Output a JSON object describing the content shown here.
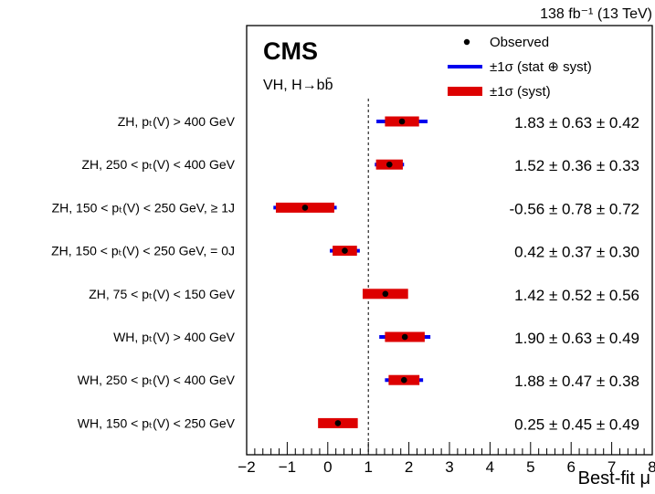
{
  "chart_data": {
    "type": "scatter",
    "title": "",
    "lumi_label": "138 fb⁻¹ (13 TeV)",
    "experiment": "CMS",
    "subtitle": "VH, H→bb̄",
    "xlabel": "Best-fit μ",
    "xlim": [
      -2,
      8
    ],
    "x_ticks": [
      -2,
      -1,
      0,
      1,
      2,
      3,
      4,
      5,
      6,
      7,
      8
    ],
    "reference_line": 1,
    "legend": {
      "position": "top-right",
      "entries": [
        {
          "label": "Observed",
          "marker": "dot",
          "color": "#000000"
        },
        {
          "label": "±1σ (stat ⊕ syst)",
          "marker": "line",
          "color": "#0000ee"
        },
        {
          "label": "±1σ (syst)",
          "marker": "box",
          "color": "#dd0000"
        }
      ]
    },
    "categories": [
      {
        "label": "ZH, pₜ(V) > 400 GeV",
        "value": 1.83,
        "total": 0.63,
        "syst": 0.42,
        "text": "1.83 ± 0.63 ± 0.42"
      },
      {
        "label": "ZH, 250 < pₜ(V) < 400 GeV",
        "value": 1.52,
        "total": 0.36,
        "syst": 0.33,
        "text": "1.52 ± 0.36 ± 0.33"
      },
      {
        "label": "ZH, 150 < pₜ(V) < 250 GeV, ≥ 1J",
        "value": -0.56,
        "total": 0.78,
        "syst": 0.72,
        "text": "-0.56 ± 0.78 ± 0.72"
      },
      {
        "label": "ZH, 150 < pₜ(V) < 250 GeV, = 0J",
        "value": 0.42,
        "total": 0.37,
        "syst": 0.3,
        "text": "0.42 ± 0.37 ± 0.30"
      },
      {
        "label": "ZH, 75 < pₜ(V) < 150 GeV",
        "value": 1.42,
        "total": 0.52,
        "syst": 0.56,
        "text": "1.42 ± 0.52 ± 0.56"
      },
      {
        "label": "WH, pₜ(V) > 400 GeV",
        "value": 1.9,
        "total": 0.63,
        "syst": 0.49,
        "text": "1.90 ± 0.63 ± 0.49"
      },
      {
        "label": "WH, 250 < pₜ(V) < 400 GeV",
        "value": 1.88,
        "total": 0.47,
        "syst": 0.38,
        "text": "1.88 ± 0.47 ± 0.38"
      },
      {
        "label": "WH, 150 < pₜ(V) < 250 GeV",
        "value": 0.25,
        "total": 0.45,
        "syst": 0.49,
        "text": "0.25 ± 0.45 ± 0.49"
      }
    ]
  }
}
